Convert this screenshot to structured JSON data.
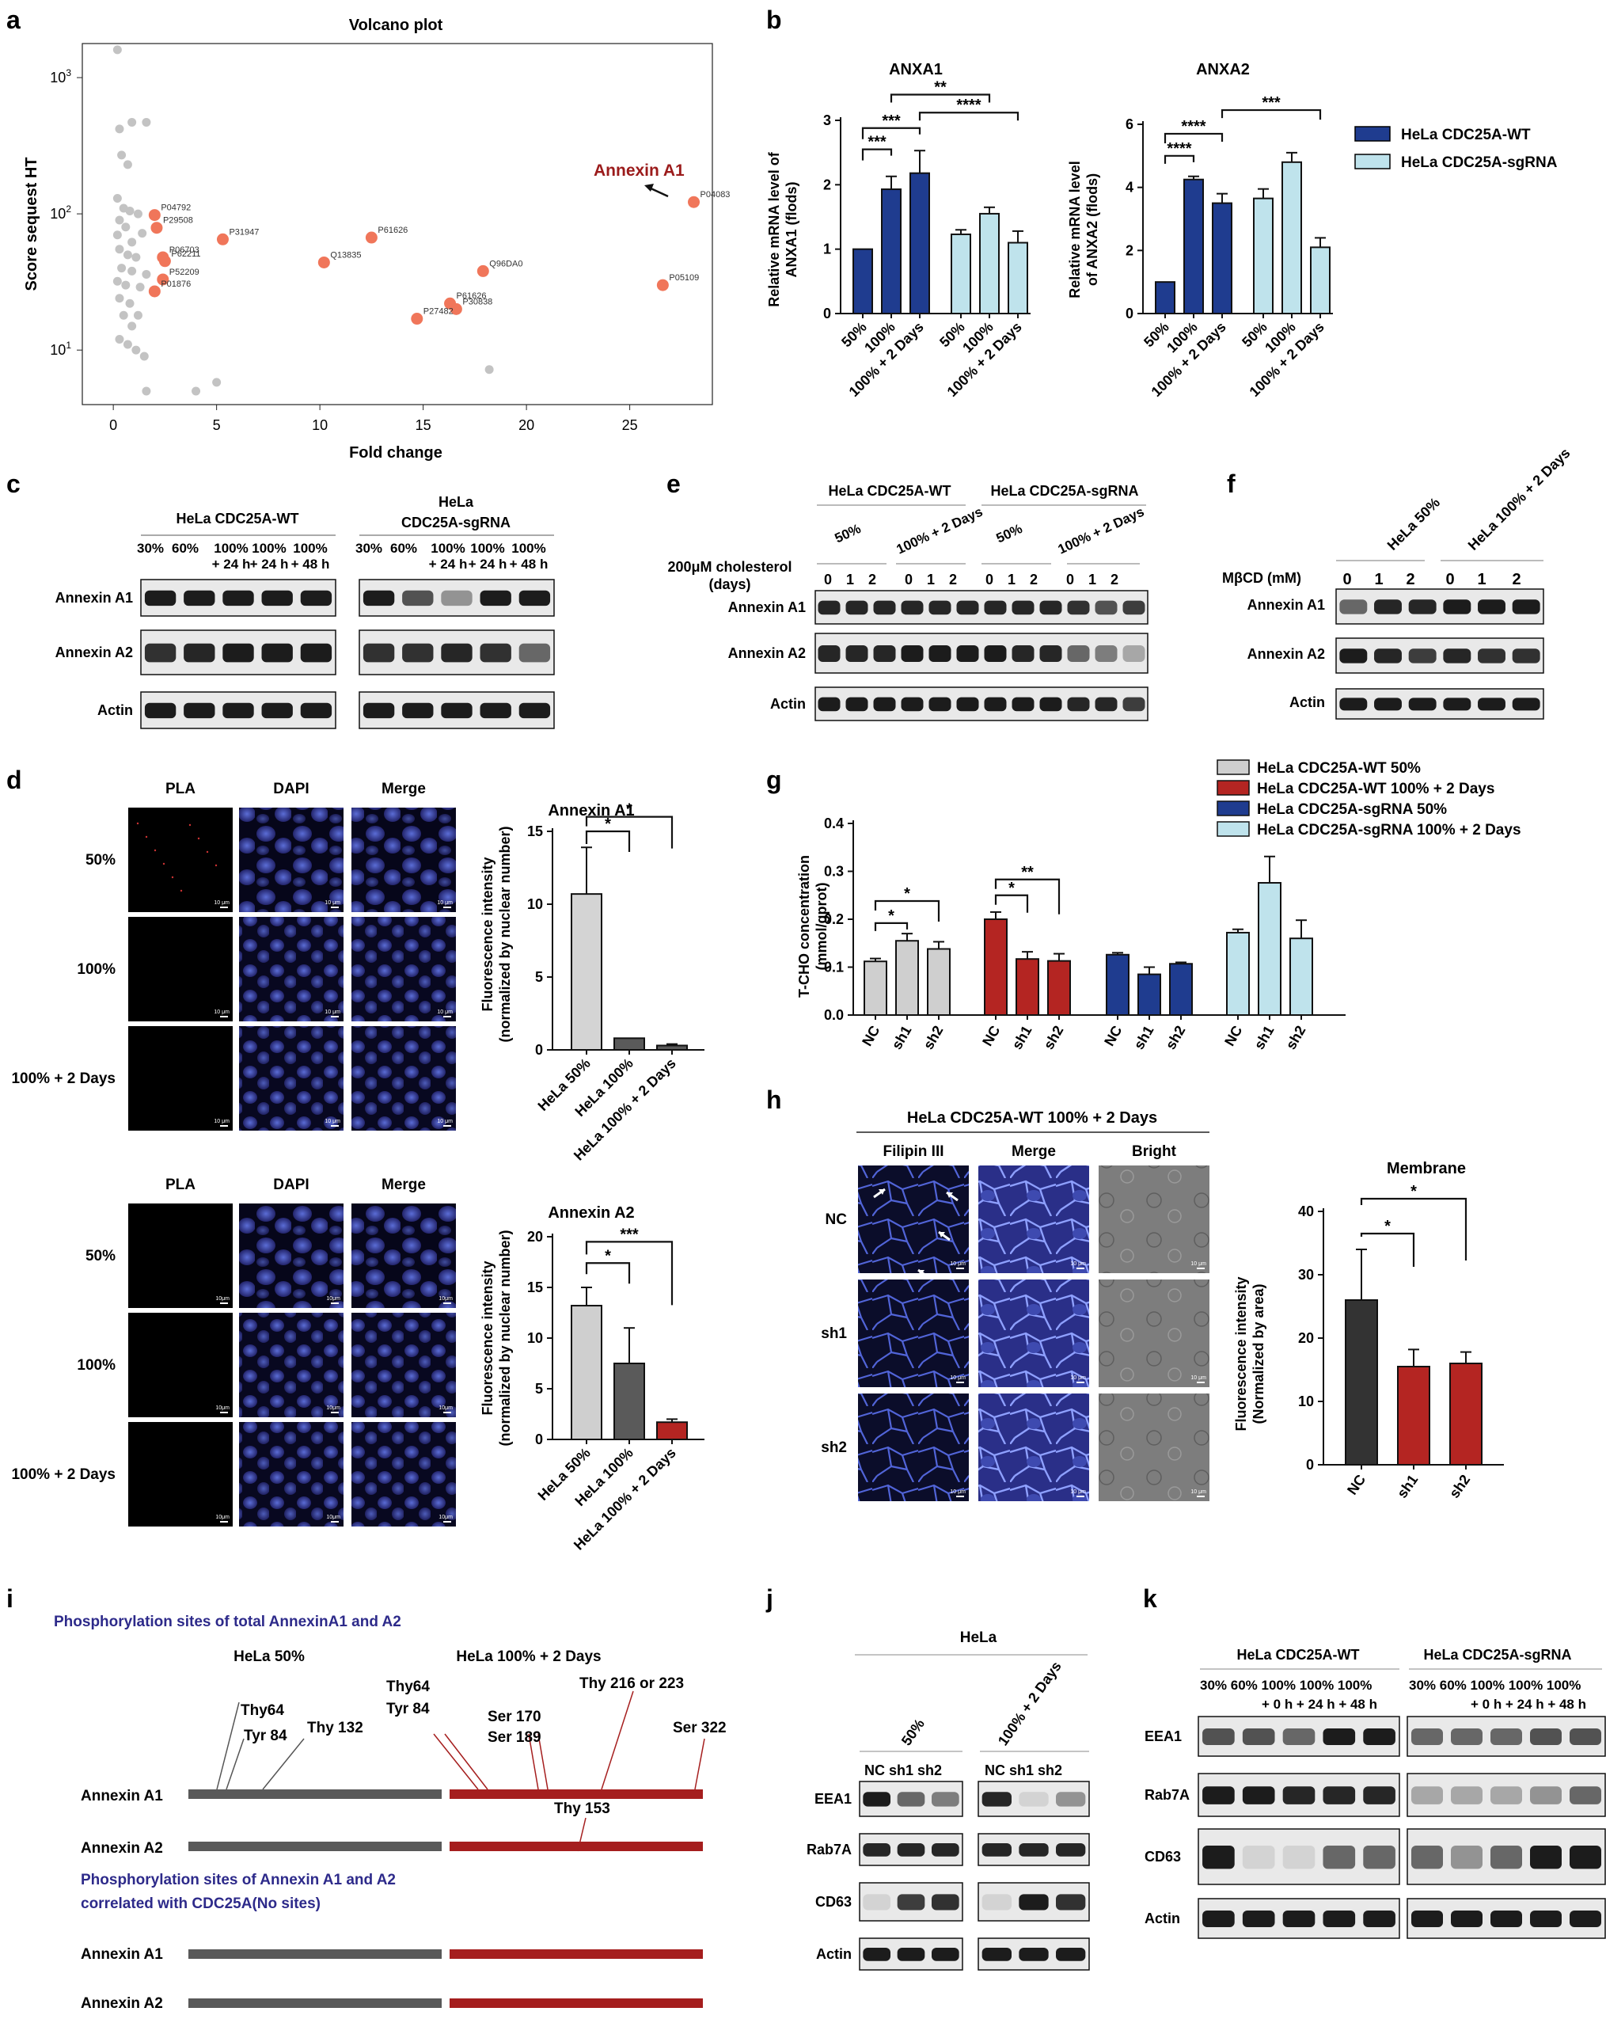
{
  "panels": {
    "a": "a",
    "b": "b",
    "c": "c",
    "d": "d",
    "e": "e",
    "f": "f",
    "g": "g",
    "h": "h",
    "i": "i",
    "j": "j",
    "k": "k"
  },
  "colors": {
    "wt_dark_blue": "#1f3c8f",
    "sg_light_blue": "#bfe3ec",
    "gray_bar": "#cfcfcf",
    "red_bar": "#b42522",
    "dark_bar": "#333333",
    "volcano_highlight": "#f0765a",
    "volcano_gray": "#c3c3c3",
    "annexin_label": "#9b1b1b",
    "phospho_title": "#2d2a8a"
  },
  "volcano": {
    "title": "Volcano plot",
    "xlabel": "Fold change",
    "ylabel": "Score sequest HT",
    "x_ticks": [
      "0",
      "5",
      "10",
      "15",
      "20",
      "25"
    ],
    "y_ticks": [
      "10^1",
      "10^2",
      "10^3"
    ],
    "annotation": "Annexin A1"
  },
  "chart_data": [
    {
      "panel": "a",
      "type": "scatter",
      "title": "Volcano plot",
      "xlabel": "Fold change",
      "ylabel": "Score sequest HT",
      "xlim": [
        -1.5,
        29
      ],
      "ylim_log10": [
        0.6,
        3.25
      ],
      "y_scale": "log",
      "highlighted": [
        {
          "label": "P04083",
          "x": 28.1,
          "y": 122
        },
        {
          "label": "P05109",
          "x": 26.6,
          "y": 30
        },
        {
          "label": "P04792",
          "x": 2.0,
          "y": 98
        },
        {
          "label": "P29508",
          "x": 2.1,
          "y": 79
        },
        {
          "label": "P31947",
          "x": 5.3,
          "y": 65
        },
        {
          "label": "P06703",
          "x": 2.4,
          "y": 48
        },
        {
          "label": "P62211",
          "x": 2.5,
          "y": 45
        },
        {
          "label": "P52209",
          "x": 2.4,
          "y": 33
        },
        {
          "label": "P01876",
          "x": 2.0,
          "y": 27
        },
        {
          "label": "Q13835",
          "x": 10.2,
          "y": 44
        },
        {
          "label": "P61626",
          "x": 12.5,
          "y": 67
        },
        {
          "label": "Q96DA0",
          "x": 17.9,
          "y": 38
        },
        {
          "label": "P61626",
          "x": 16.3,
          "y": 22
        },
        {
          "label": "P30838",
          "x": 16.6,
          "y": 20
        },
        {
          "label": "P27482",
          "x": 14.7,
          "y": 17
        }
      ],
      "gray_points": [
        [
          0.2,
          1600
        ],
        [
          0.3,
          420
        ],
        [
          0.9,
          470
        ],
        [
          1.6,
          470
        ],
        [
          0.4,
          270
        ],
        [
          0.7,
          230
        ],
        [
          0.2,
          130
        ],
        [
          0.5,
          110
        ],
        [
          0.3,
          90
        ],
        [
          0.8,
          105
        ],
        [
          1.2,
          100
        ],
        [
          0.6,
          80
        ],
        [
          0.2,
          70
        ],
        [
          0.9,
          62
        ],
        [
          1.4,
          72
        ],
        [
          0.3,
          55
        ],
        [
          0.7,
          50
        ],
        [
          1.1,
          48
        ],
        [
          0.4,
          40
        ],
        [
          0.9,
          38
        ],
        [
          1.6,
          36
        ],
        [
          0.2,
          32
        ],
        [
          0.6,
          30
        ],
        [
          1.3,
          29
        ],
        [
          0.3,
          24
        ],
        [
          0.8,
          22
        ],
        [
          0.5,
          18
        ],
        [
          1.2,
          18
        ],
        [
          0.9,
          15
        ],
        [
          0.3,
          12
        ],
        [
          0.7,
          11
        ],
        [
          1.1,
          10
        ],
        [
          1.5,
          9
        ],
        [
          1.6,
          5
        ],
        [
          4.0,
          5
        ],
        [
          5.0,
          5.8
        ],
        [
          18.2,
          7.2
        ]
      ]
    },
    {
      "panel": "b",
      "type": "bar",
      "title": "ANXA1",
      "ylabel": "Relative mRNA level of ANXA1 (flods)",
      "categories": [
        "50%",
        "100%",
        "100% + 2 Days"
      ],
      "ylim": [
        0,
        3
      ],
      "series": [
        {
          "name": "HeLa CDC25A-WT",
          "values": [
            1.0,
            1.93,
            2.18
          ],
          "errors": [
            0.0,
            0.2,
            0.35
          ]
        },
        {
          "name": "HeLa CDC25A-sgRNA",
          "values": [
            1.23,
            1.55,
            1.1
          ],
          "errors": [
            0.07,
            0.1,
            0.18
          ]
        }
      ],
      "significance": [
        "***",
        "***",
        "**",
        "****"
      ]
    },
    {
      "panel": "b",
      "type": "bar",
      "title": "ANXA2",
      "ylabel": "Relative mRNA level of ANXA2 (flods)",
      "categories": [
        "50%",
        "100%",
        "100% + 2 Days"
      ],
      "ylim": [
        0,
        6
      ],
      "series": [
        {
          "name": "HeLa CDC25A-WT",
          "values": [
            1.0,
            4.25,
            3.5
          ],
          "errors": [
            0.0,
            0.1,
            0.3
          ]
        },
        {
          "name": "HeLa CDC25A-sgRNA",
          "values": [
            3.65,
            4.8,
            2.1
          ],
          "errors": [
            0.3,
            0.3,
            0.3
          ]
        }
      ],
      "significance": [
        "****",
        "****",
        "***"
      ]
    },
    {
      "panel": "d",
      "type": "bar",
      "title": "Annexin A1",
      "ylabel": "Fluorescence intensity (normalized by nuclear number)",
      "categories": [
        "HeLa 50%",
        "HeLa 100%",
        "HeLa 100% + 2 Days"
      ],
      "ylim": [
        0,
        15
      ],
      "values": [
        10.7,
        0.8,
        0.3
      ],
      "errors": [
        3.2,
        0,
        0.1
      ],
      "significance": [
        "*",
        "*"
      ]
    },
    {
      "panel": "d",
      "type": "bar",
      "title": "Annexin A2",
      "ylabel": "Fluorescence intensity (normalized by nuclear number)",
      "categories": [
        "HeLa 50%",
        "HeLa 100%",
        "HeLa 100% + 2 Days"
      ],
      "ylim": [
        0,
        20
      ],
      "values": [
        13.2,
        7.5,
        1.7
      ],
      "errors": [
        1.8,
        3.5,
        0.3
      ],
      "significance": [
        "*",
        "***"
      ]
    },
    {
      "panel": "g",
      "type": "bar",
      "ylabel": "T-CHO concentration (mmol/gprot)",
      "categories": [
        "NC",
        "sh1",
        "sh2"
      ],
      "ylim": [
        0,
        0.4
      ],
      "series": [
        {
          "name": "HeLa CDC25A-WT 50%",
          "values": [
            0.112,
            0.155,
            0.138
          ],
          "errors": [
            0.006,
            0.015,
            0.015
          ]
        },
        {
          "name": "HeLa CDC25A-WT 100% + 2 Days",
          "values": [
            0.2,
            0.117,
            0.113
          ],
          "errors": [
            0.015,
            0.015,
            0.015
          ]
        },
        {
          "name": "HeLa CDC25A-sgRNA 50%",
          "values": [
            0.126,
            0.085,
            0.107
          ],
          "errors": [
            0.004,
            0.015,
            0.003
          ]
        },
        {
          "name": "HeLa CDC25A-sgRNA 100% + 2 Days",
          "values": [
            0.172,
            0.276,
            0.16
          ],
          "errors": [
            0.007,
            0.055,
            0.038
          ]
        }
      ],
      "significance": [
        "*",
        "*",
        "*",
        "**"
      ]
    },
    {
      "panel": "h",
      "type": "bar",
      "title": "Membrane",
      "ylabel": "Fluorescence intensity (Normalized by area)",
      "categories": [
        "NC",
        "sh1",
        "sh2"
      ],
      "ylim": [
        0,
        40
      ],
      "values": [
        26,
        15.5,
        16
      ],
      "errors": [
        8,
        2.7,
        1.8
      ],
      "significance": [
        "*",
        "*"
      ]
    }
  ],
  "b": {
    "legend": [
      "HeLa CDC25A-WT",
      "HeLa CDC25A-sgRNA"
    ],
    "anxa1": {
      "title": "ANXA1",
      "ylabel1": "Relative mRNA level of",
      "ylabel2": "ANXA1 (flods)",
      "ticks": [
        "0",
        "1",
        "2",
        "3"
      ]
    },
    "anxa2": {
      "title": "ANXA2",
      "ylabel1": "Relative mRNA level",
      "ylabel2": "of ANXA2 (flods)",
      "ticks": [
        "0",
        "2",
        "4",
        "6"
      ]
    },
    "cats": [
      "50%",
      "100%",
      "100% + 2 Days"
    ]
  },
  "c": {
    "group1": "HeLa CDC25A-WT",
    "group2_l1": "HeLa",
    "group2_l2": "CDC25A-sgRNA",
    "lane_l1": [
      "30%",
      "60%",
      "100%",
      "100%",
      "100%"
    ],
    "lane_l2": [
      "+ 24 h",
      "+ 24 h",
      "+ 48 h"
    ],
    "rows": [
      "Annexin A1",
      "Annexin A2",
      "Actin"
    ]
  },
  "e": {
    "group1": "HeLa CDC25A-WT",
    "group2": "HeLa CDC25A-sgRNA",
    "sub": [
      "50%",
      "100% + 2 Days",
      "50%",
      "100% + 2 Days"
    ],
    "treat1": "200μM cholesterol",
    "treat2": "(days)",
    "days": [
      "0",
      "1",
      "2"
    ],
    "rows": [
      "Annexin A1",
      "Annexin A2",
      "Actin"
    ]
  },
  "f": {
    "sub": [
      "HeLa 50%",
      "HeLa 100% + 2 Days"
    ],
    "treat": "MβCD (mM)",
    "doses": [
      "0",
      "1",
      "2"
    ],
    "rows": [
      "Annexin A1",
      "Annexin A2",
      "Actin"
    ]
  },
  "d": {
    "cols": [
      "PLA",
      "DAPI",
      "Merge"
    ],
    "rows": [
      "50%",
      "100%",
      "100% + 2 Days"
    ],
    "scale_top": "10 μm",
    "scale_bottom": "10μm",
    "a1": {
      "title": "Annexin A1",
      "ylabel1": "Fluorescence intensity",
      "ylabel2": "(normalized by nuclear number)",
      "ticks": [
        "0",
        "5",
        "10",
        "15"
      ]
    },
    "a2": {
      "title": "Annexin A2",
      "ylabel1": "Fluorescence intensity",
      "ylabel2": "(normalized by nuclear number)",
      "ticks": [
        "0",
        "5",
        "10",
        "15",
        "20"
      ]
    },
    "cats": [
      "HeLa 50%",
      "HeLa 100%",
      "HeLa 100% + 2 Days"
    ]
  },
  "g": {
    "legend": [
      "HeLa CDC25A-WT 50%",
      "HeLa CDC25A-WT 100% + 2 Days",
      "HeLa CDC25A-sgRNA 50%",
      "HeLa CDC25A-sgRNA 100% + 2 Days"
    ],
    "ylabel1": "T-CHO concentration",
    "ylabel2": "(mmol/gprot)",
    "ticks": [
      "0.0",
      "0.1",
      "0.2",
      "0.3",
      "0.4"
    ],
    "cats": [
      "NC",
      "sh1",
      "sh2"
    ]
  },
  "h": {
    "header": "HeLa CDC25A-WT 100% + 2 Days",
    "cols": [
      "Filipin III",
      "Merge",
      "Bright"
    ],
    "rows": [
      "NC",
      "sh1",
      "sh2"
    ],
    "scale": "10 μm",
    "chart_title": "Membrane",
    "ylabel1": "Fluorescence intensity",
    "ylabel2": "(Normalized by area)",
    "ticks": [
      "0",
      "10",
      "20",
      "30",
      "40"
    ],
    "cats": [
      "NC",
      "sh1",
      "sh2"
    ]
  },
  "i": {
    "title1": "Phosphorylation sites of total AnnexinA1 and A2",
    "col1": "HeLa 50%",
    "col2": "HeLa 100% + 2 Days",
    "site_thy64_a": "Thy64",
    "site_tyr84_a": "Tyr 84",
    "site_thy132": "Thy 132",
    "site_thy64_b": "Thy64",
    "site_tyr84_b": "Tyr 84",
    "site_ser170": "Ser 170",
    "site_ser189": "Ser 189",
    "site_thy216": "Thy 216 or 223",
    "site_ser322": "Ser 322",
    "site_thy153": "Thy 153",
    "a1": "Annexin A1",
    "a2": "Annexin A2",
    "title2a": "Phosphorylation sites of Annexin A1 and A2",
    "title2b": "correlated with CDC25A(No sites)"
  },
  "j": {
    "header": "HeLa",
    "sub": [
      "50%",
      "100% + 2 Days"
    ],
    "lanes1": "NC sh1 sh2",
    "lanes2": "NC sh1 sh2",
    "rows": [
      "EEA1",
      "Rab7A",
      "CD63",
      "Actin"
    ]
  },
  "k": {
    "group1": "HeLa CDC25A-WT",
    "group2": "HeLa CDC25A-sgRNA",
    "lane_l1": "30% 60%  100% 100% 100%",
    "lane_l2": "+ 0 h   + 24 h  + 48 h",
    "rows": [
      "EEA1",
      "Rab7A",
      "CD63",
      "Actin"
    ]
  }
}
